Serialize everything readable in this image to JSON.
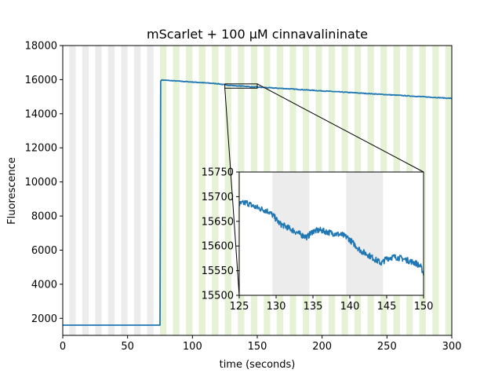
{
  "chart_data": [
    {
      "type": "line",
      "title": "mScarlet + 100 µM cinnavalininate",
      "xlabel": "time (seconds)",
      "ylabel": "Fluorescence",
      "xlim": [
        0,
        300
      ],
      "ylim": [
        1000,
        18000
      ],
      "xticks": [
        "0",
        "50",
        "100",
        "150",
        "200",
        "250",
        "300"
      ],
      "yticks": [
        "2000",
        "4000",
        "6000",
        "8000",
        "10000",
        "12000",
        "14000",
        "16000",
        "18000"
      ],
      "grid": false,
      "legend": "none",
      "background_bands": {
        "period_seconds": 10,
        "band_seconds": 5,
        "before_color": "#ececec",
        "after_color": "#e6f2d6",
        "switch_at": 75
      },
      "series": [
        {
          "color": "#1f77b4",
          "x": [
            0,
            75,
            75.5,
            76,
            80,
            100,
            120,
            125,
            130,
            135,
            140,
            145,
            150,
            175,
            200,
            225,
            250,
            275,
            300
          ],
          "values": [
            1600,
            1600,
            15900,
            15980,
            15960,
            15860,
            15760,
            15690,
            15660,
            15630,
            15620,
            15580,
            15560,
            15460,
            15340,
            15230,
            15120,
            15010,
            14900
          ]
        }
      ],
      "zoom_box": {
        "x": [
          125,
          150
        ],
        "y": [
          15500,
          15750
        ]
      }
    },
    {
      "type": "line",
      "title": "",
      "xlim": [
        125,
        150
      ],
      "ylim": [
        15500,
        15750
      ],
      "xticks": [
        "125",
        "130",
        "135",
        "140",
        "145",
        "150"
      ],
      "yticks": [
        "15500",
        "15550",
        "15600",
        "15650",
        "15700",
        "15750"
      ],
      "shaded_intervals": [
        [
          129.5,
          134.5
        ],
        [
          139.5,
          144.5
        ]
      ],
      "shade_color": "#ececec",
      "series": [
        {
          "color": "#1f77b4",
          "x": [
            125,
            126,
            127,
            128,
            129,
            129.7,
            130.5,
            131.5,
            132.5,
            133.5,
            134.2,
            135,
            136,
            137,
            138,
            139,
            139.7,
            140.5,
            141.5,
            142.5,
            143.5,
            144.3,
            145,
            146,
            147,
            148,
            149,
            149.6,
            150
          ],
          "values": [
            15685,
            15688,
            15680,
            15675,
            15670,
            15660,
            15645,
            15638,
            15630,
            15622,
            15618,
            15630,
            15632,
            15628,
            15625,
            15622,
            15617,
            15605,
            15590,
            15582,
            15572,
            15565,
            15575,
            15578,
            15575,
            15570,
            15565,
            15558,
            15545
          ]
        }
      ]
    }
  ]
}
